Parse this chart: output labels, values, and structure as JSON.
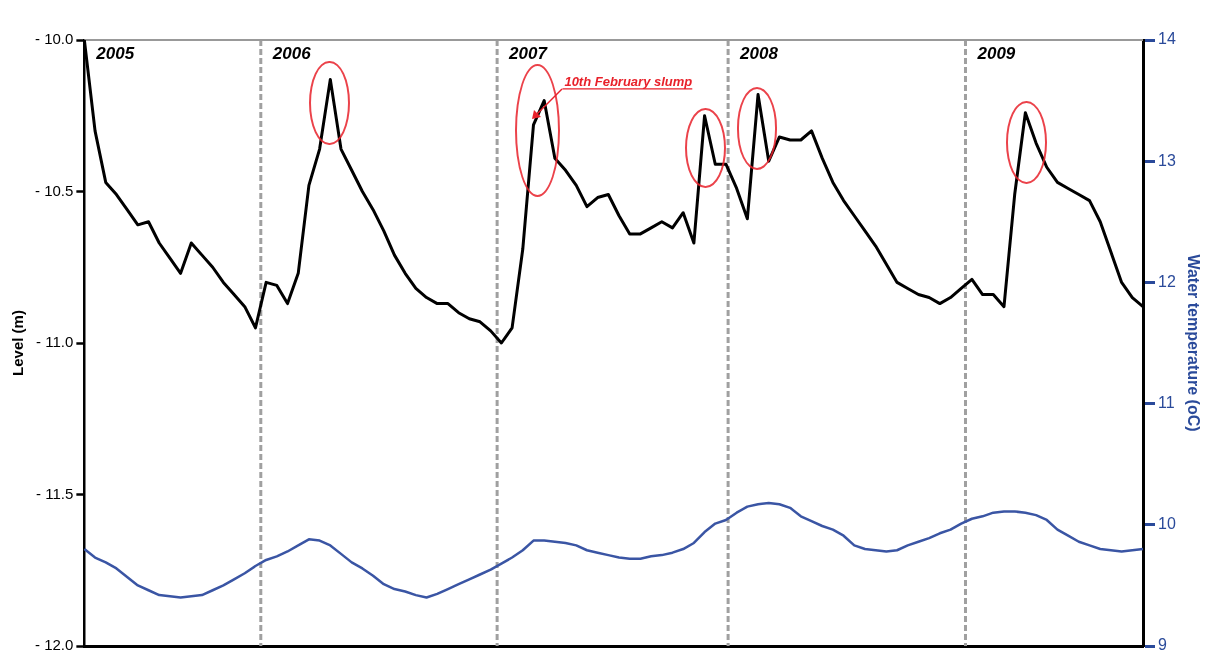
{
  "chart_data": {
    "type": "line",
    "ylabel": "Level (m)",
    "y2label": "Water temperature (oC)",
    "categories": [
      null,
      null,
      null,
      null,
      null,
      null,
      null,
      null,
      null,
      null,
      null,
      null,
      null,
      null,
      null,
      null,
      null,
      null,
      null,
      null,
      null,
      null,
      null,
      null,
      null,
      null,
      null,
      null,
      null,
      null,
      null,
      null,
      null,
      null,
      null,
      null,
      null,
      null,
      null,
      null,
      null,
      null,
      null,
      null,
      null,
      null,
      null,
      null,
      null,
      null,
      null,
      null,
      null,
      null,
      null,
      null,
      null,
      null,
      null,
      null,
      null,
      null,
      null,
      null,
      null,
      null,
      null,
      null,
      null,
      null,
      null,
      null,
      null,
      null,
      null,
      null,
      null,
      null,
      null,
      null,
      null,
      null,
      null,
      null,
      null,
      null,
      null,
      null,
      null,
      null,
      null,
      null,
      null,
      null,
      null,
      null,
      null,
      null,
      null,
      null
    ],
    "tick_labels": "y",
    "ylim": [
      -12,
      -10
    ],
    "yticks": [
      {
        "value": -12,
        "label": "- 12.0"
      },
      {
        "value": -11.5,
        "label": "- 11.5"
      },
      {
        "value": -11,
        "label": "- 11.0"
      },
      {
        "value": -10.5,
        "label": "- 10.5"
      },
      {
        "value": -10,
        "label": "- 10.0"
      }
    ],
    "y2lim": [
      9,
      14
    ],
    "y2ticks": [
      9,
      10,
      11,
      12,
      13,
      14
    ],
    "grid": false,
    "legend": false,
    "marker": "none",
    "line_style": "solid",
    "series": [
      {
        "color": "#000000",
        "values": [
          -10.0,
          -10.3,
          -10.47,
          -10.51,
          -10.56,
          -10.61,
          -10.6,
          -10.67,
          -10.72,
          -10.77,
          -10.67,
          -10.71,
          -10.75,
          -10.8,
          -10.84,
          -10.88,
          -10.95,
          -10.8,
          -10.81,
          -10.87,
          -10.77,
          -10.48,
          -10.36,
          -10.13,
          -10.36,
          -10.43,
          -10.5,
          -10.56,
          -10.63,
          -10.71,
          -10.77,
          -10.82,
          -10.85,
          -10.87,
          -10.87,
          -10.9,
          -10.92,
          -10.93,
          -10.96,
          -11.0,
          -10.95,
          -10.69,
          -10.28,
          -10.2,
          -10.39,
          -10.43,
          -10.48,
          -10.55,
          -10.52,
          -10.51,
          -10.58,
          -10.64,
          -10.64,
          -10.62,
          -10.6,
          -10.62,
          -10.57,
          -10.67,
          -10.25,
          -10.41,
          -10.41,
          -10.49,
          -10.59,
          -10.18,
          -10.4,
          -10.32,
          -10.33,
          -10.33,
          -10.3,
          -10.39,
          -10.47,
          -10.53,
          -10.58,
          -10.63,
          -10.68,
          -10.74,
          -10.8,
          -10.82,
          -10.84,
          -10.85,
          -10.87,
          -10.85,
          -10.82,
          -10.79,
          -10.84,
          -10.84,
          -10.88,
          -10.51,
          -10.24,
          -10.34,
          -10.42,
          -10.47,
          -10.49,
          -10.51,
          -10.53,
          -10.6,
          -10.7,
          -10.8,
          -10.85,
          -10.88
        ]
      },
      {
        "color": "#3a55a4",
        "axis": "y2",
        "values": [
          9.8,
          9.73,
          9.69,
          9.64,
          9.57,
          9.5,
          9.46,
          9.42,
          9.41,
          9.4,
          9.41,
          9.42,
          9.46,
          9.5,
          9.55,
          9.6,
          9.66,
          9.71,
          9.74,
          9.78,
          9.83,
          9.88,
          9.87,
          9.83,
          9.76,
          9.69,
          9.64,
          9.58,
          9.51,
          9.47,
          9.45,
          9.42,
          9.4,
          9.43,
          9.47,
          9.51,
          9.55,
          9.59,
          9.63,
          9.68,
          9.73,
          9.79,
          9.87,
          9.87,
          9.86,
          9.85,
          9.83,
          9.79,
          9.77,
          9.75,
          9.73,
          9.72,
          9.72,
          9.74,
          9.75,
          9.77,
          9.8,
          9.85,
          9.94,
          10.01,
          10.04,
          10.1,
          10.15,
          10.17,
          10.18,
          10.17,
          10.14,
          10.07,
          10.03,
          9.99,
          9.96,
          9.91,
          9.83,
          9.8,
          9.79,
          9.78,
          9.79,
          9.83,
          9.86,
          9.89,
          9.93,
          9.96,
          10.01,
          10.05,
          10.07,
          10.1,
          10.11,
          10.11,
          10.1,
          10.08,
          10.04,
          9.96,
          9.91,
          9.86,
          9.83,
          9.8,
          9.79,
          9.78,
          9.79,
          9.8
        ]
      }
    ],
    "annotations": [
      "2005",
      "2006",
      "2007",
      "2008",
      "2009",
      "10th February slump"
    ]
  }
}
